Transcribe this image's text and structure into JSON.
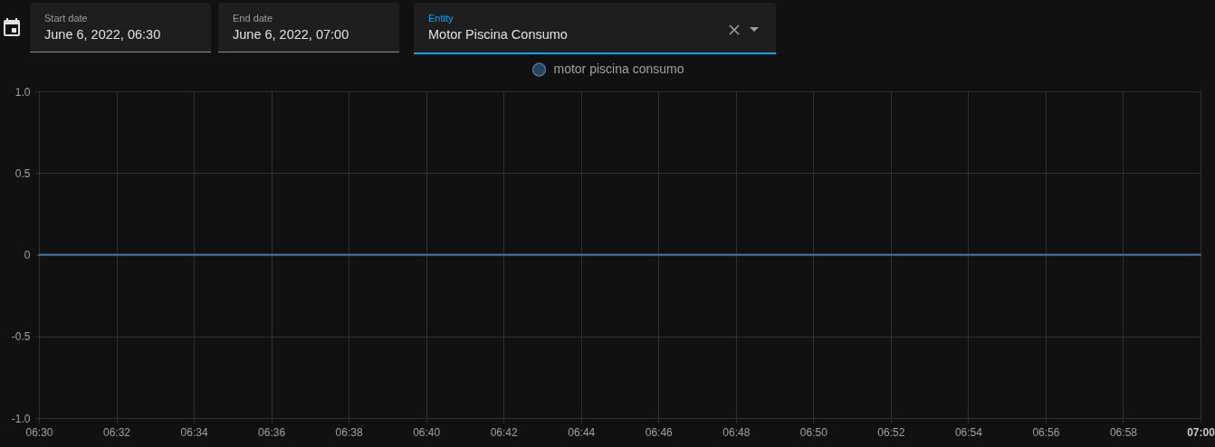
{
  "chart_data": {
    "type": "line",
    "annotations": [
      "Start date",
      "June 6, 2022, 06:30",
      "End date",
      "June 6, 2022, 07:00",
      "Entity",
      "Motor Piscina Consumo"
    ],
    "x": [
      "2022-06-06T06:30",
      "2022-06-06T06:33",
      "2022-06-06T06:37",
      "2022-06-06T06:53",
      "2022-06-06T06:57",
      "2022-06-06T07:00"
    ],
    "series": [
      {
        "name": "motor piscina consumo",
        "color": "#44739e",
        "values": [
          0,
          0,
          0,
          0,
          0,
          0
        ]
      }
    ],
    "xlim": [
      "2022-06-06T06:30",
      "2022-06-06T07:00"
    ],
    "xticks": [
      {
        "value": "2022-06-06T06:30",
        "label": "06:30"
      },
      {
        "value": "2022-06-06T06:32",
        "label": "06:32"
      },
      {
        "value": "2022-06-06T06:34",
        "label": "06:34"
      },
      {
        "value": "2022-06-06T06:36",
        "label": "06:36"
      },
      {
        "value": "2022-06-06T06:38",
        "label": "06:38"
      },
      {
        "value": "2022-06-06T06:40",
        "label": "06:40"
      },
      {
        "value": "2022-06-06T06:42",
        "label": "06:42"
      },
      {
        "value": "2022-06-06T06:44",
        "label": "06:44"
      },
      {
        "value": "2022-06-06T06:46",
        "label": "06:46"
      },
      {
        "value": "2022-06-06T06:48",
        "label": "06:48"
      },
      {
        "value": "2022-06-06T06:50",
        "label": "06:50"
      },
      {
        "value": "2022-06-06T06:52",
        "label": "06:52"
      },
      {
        "value": "2022-06-06T06:54",
        "label": "06:54"
      },
      {
        "value": "2022-06-06T06:56",
        "label": "06:56"
      },
      {
        "value": "2022-06-06T06:58",
        "label": "06:58"
      },
      {
        "value": "2022-06-06T07:00",
        "label": "07:00"
      }
    ],
    "ylim": [
      -1,
      1
    ],
    "yticks": [
      {
        "value": -1,
        "label": "-1.0"
      },
      -0.5,
      0,
      0.5,
      {
        "value": 1,
        "label": "1.0"
      }
    ],
    "grid": true,
    "legend": "top",
    "line_style": "solid"
  }
}
